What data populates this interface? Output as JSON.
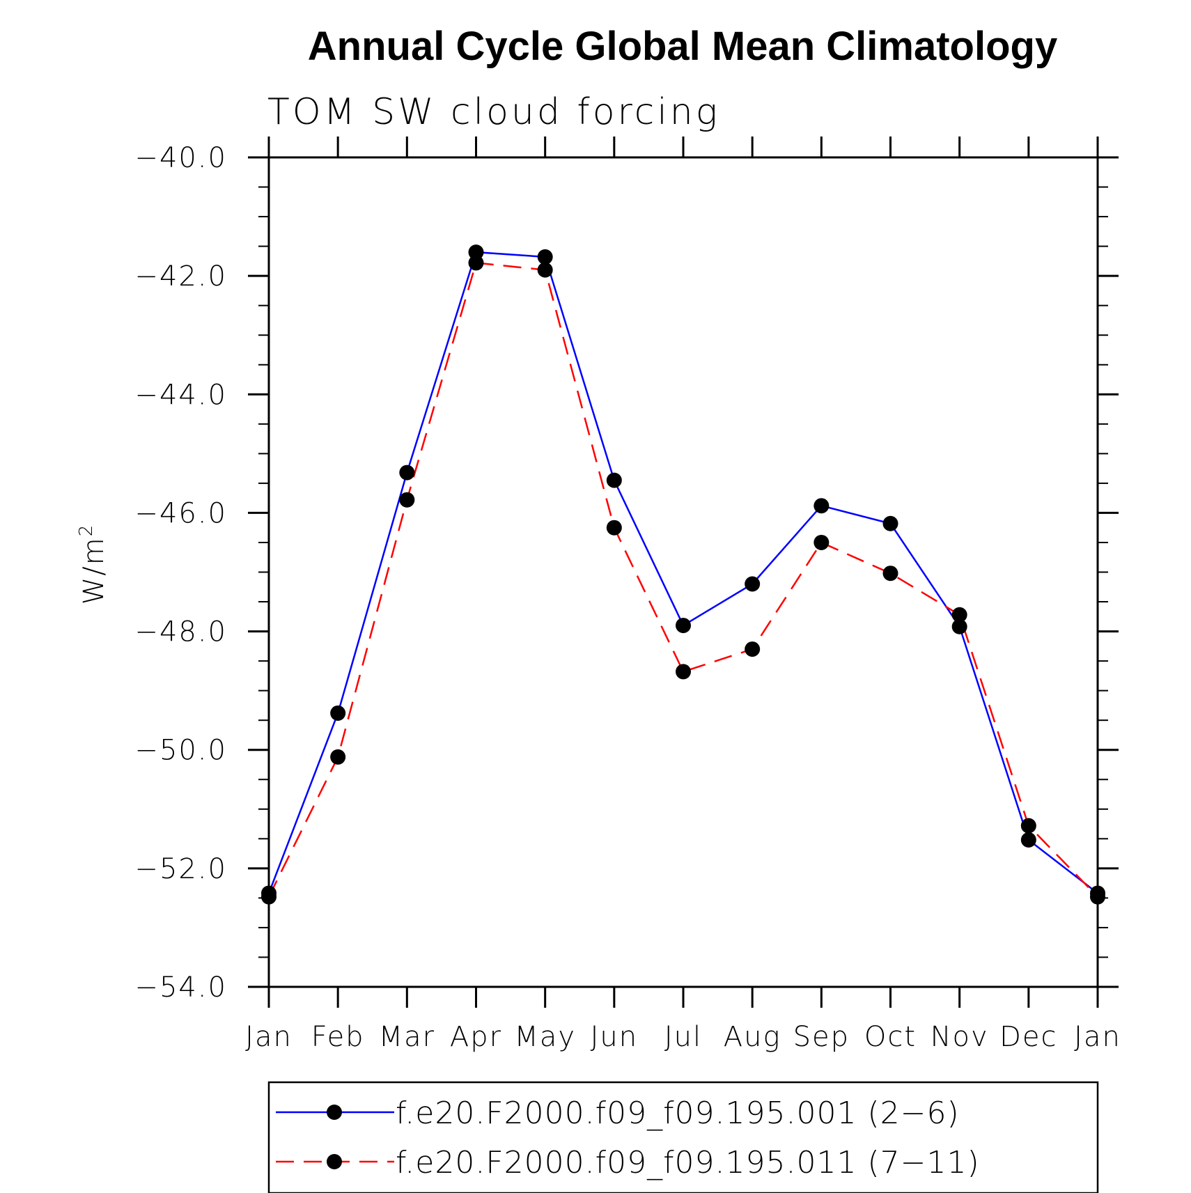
{
  "chart_data": {
    "type": "line",
    "title": "Annual Cycle Global Mean Climatology",
    "subtitle": "TOM SW cloud forcing",
    "ylabel": "W/m",
    "ylabel_superscript": "2",
    "xlabel": "",
    "categories": [
      "Jan",
      "Feb",
      "Mar",
      "Apr",
      "May",
      "Jun",
      "Jul",
      "Aug",
      "Sep",
      "Oct",
      "Nov",
      "Dec",
      "Jan"
    ],
    "ylim": [
      -54.0,
      -40.0
    ],
    "yticks": [
      "−40.0",
      "−42.0",
      "−44.0",
      "−46.0",
      "−48.0",
      "−50.0",
      "−52.0",
      "−54.0"
    ],
    "ytick_values": [
      -40,
      -42,
      -44,
      -46,
      -48,
      -50,
      -52,
      -54
    ],
    "grid": false,
    "legend_position": "bottom",
    "series": [
      {
        "name": "f.e20.F2000.f09_f09.195.001 (2−6)",
        "color": "#0000ff",
        "style": "solid",
        "values": [
          -52.42,
          -49.38,
          -45.32,
          -41.6,
          -41.68,
          -45.45,
          -47.9,
          -47.2,
          -45.88,
          -46.18,
          -47.92,
          -51.52,
          -52.42
        ]
      },
      {
        "name": "f.e20.F2000.f09_f09.195.011 (7−11)",
        "color": "#ff0000",
        "style": "dashed",
        "values": [
          -52.48,
          -50.12,
          -45.78,
          -41.78,
          -41.9,
          -46.25,
          -48.68,
          -48.3,
          -46.5,
          -47.02,
          -47.72,
          -51.28,
          -52.48
        ]
      }
    ]
  }
}
